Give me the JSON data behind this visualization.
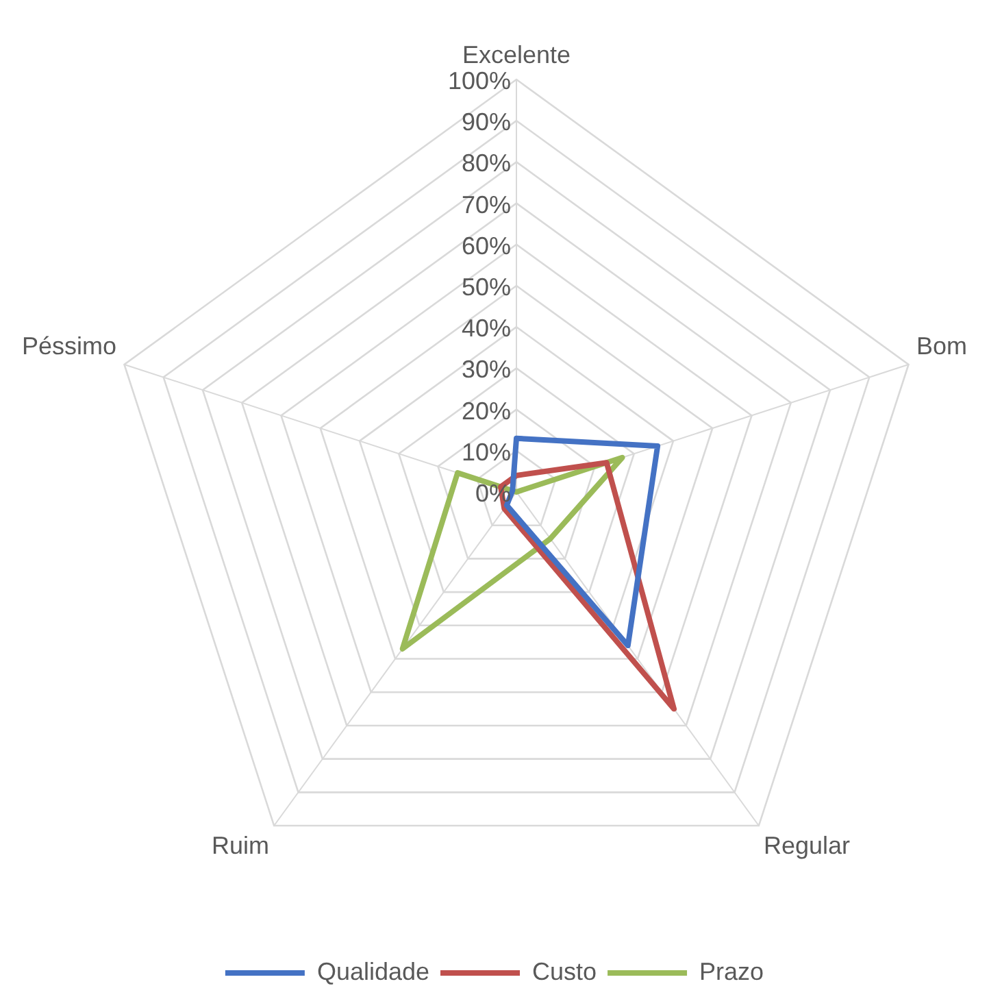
{
  "chart_data": {
    "type": "radar",
    "categories": [
      "Excelente",
      "Bom",
      "Regular",
      "Ruim",
      "Péssimo"
    ],
    "series": [
      {
        "name": "Qualidade",
        "color": "#4472c4",
        "values": [
          13,
          36,
          46,
          4,
          1
        ]
      },
      {
        "name": "Custo",
        "color": "#c0504d",
        "values": [
          4,
          23,
          65,
          5,
          4
        ]
      },
      {
        "name": "Prazo",
        "color": "#9bbb59",
        "values": [
          0,
          27,
          14,
          47,
          15
        ]
      }
    ],
    "ylim": [
      0,
      100
    ],
    "yticks": [
      {
        "value": 0,
        "label": "0%"
      },
      {
        "value": 10,
        "label": "10%"
      },
      {
        "value": 20,
        "label": "20%"
      },
      {
        "value": 30,
        "label": "30%"
      },
      {
        "value": 40,
        "label": "40%"
      },
      {
        "value": 50,
        "label": "50%"
      },
      {
        "value": 60,
        "label": "60%"
      },
      {
        "value": 70,
        "label": "70%"
      },
      {
        "value": 80,
        "label": "80%"
      },
      {
        "value": 90,
        "label": "90%"
      },
      {
        "value": 100,
        "label": "100%"
      }
    ],
    "grid": true,
    "legend": "bottom",
    "marker": "none",
    "line_style": "solid"
  }
}
